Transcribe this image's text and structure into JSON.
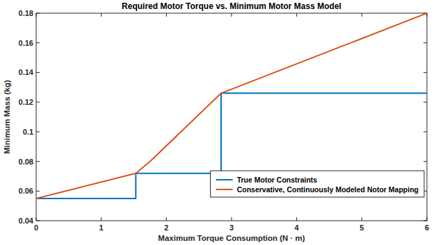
{
  "chart_data": {
    "type": "line",
    "title": "Required Motor Torque vs. Minimum Motor Mass Model",
    "x_label": "Maximum Torque Consumption (N · m)",
    "y_label": "Minimum Mass (kg)",
    "xlim": [
      0,
      6
    ],
    "xticks": [
      0,
      1,
      2,
      3,
      4,
      5,
      6
    ],
    "ylim": [
      0.04,
      0.18
    ],
    "yticks": [
      0.04,
      0.06,
      0.08,
      0.1,
      0.12,
      0.14,
      0.16,
      0.18
    ],
    "grid": false,
    "legend": "southeast",
    "series": [
      {
        "name": "True Motor Constraints",
        "color": "#0072bd",
        "x": [
          0,
          1.53,
          1.53,
          2.84,
          2.84,
          6
        ],
        "values": [
          0.055,
          0.055,
          0.072,
          0.072,
          0.126,
          0.126
        ]
      },
      {
        "name": "Conservative, Continuously Modeled Notor Mapping",
        "color": "#d95319",
        "x": [
          0,
          1.53,
          1.75,
          2.84,
          6
        ],
        "values": [
          0.055,
          0.072,
          0.08,
          0.126,
          0.18
        ]
      }
    ]
  }
}
